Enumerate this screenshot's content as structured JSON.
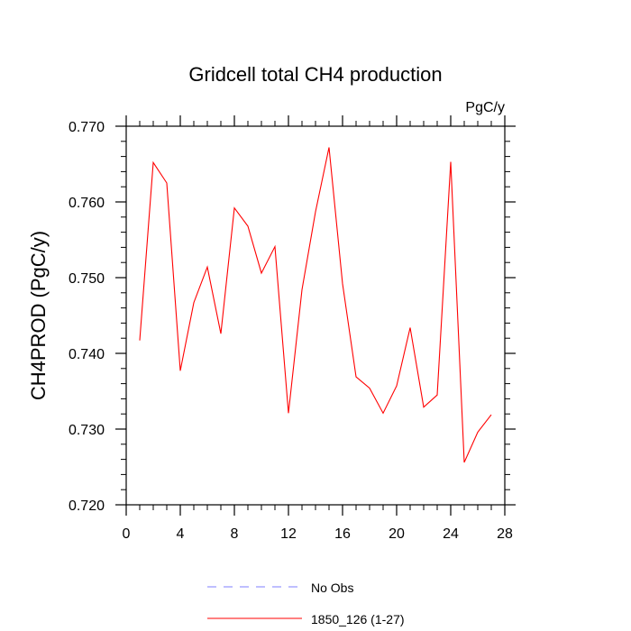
{
  "chart_data": {
    "type": "line",
    "title": "Gridcell total CH4 production",
    "units_label": "PgC/y",
    "xlabel": "",
    "ylabel": "CH4PROD  (PgC/y)",
    "xlim": [
      0,
      28
    ],
    "ylim": [
      0.72,
      0.77
    ],
    "x_major_ticks": [
      0,
      4,
      8,
      12,
      16,
      20,
      24,
      28
    ],
    "y_major_ticks": [
      0.72,
      0.73,
      0.74,
      0.75,
      0.76,
      0.77
    ],
    "y_tick_labels": [
      "0.720",
      "0.730",
      "0.740",
      "0.750",
      "0.760",
      "0.770"
    ],
    "series": [
      {
        "name": "1850_126 (1-27)",
        "color": "#ff0000",
        "style": "solid",
        "x": [
          1,
          2,
          3,
          4,
          5,
          6,
          7,
          8,
          9,
          10,
          11,
          12,
          13,
          14,
          15,
          16,
          17,
          18,
          19,
          20,
          21,
          22,
          23,
          24,
          25,
          26,
          27
        ],
        "values": [
          0.7417,
          0.7652,
          0.7625,
          0.7377,
          0.7467,
          0.7514,
          0.7426,
          0.7592,
          0.7568,
          0.7506,
          0.7541,
          0.7321,
          0.7484,
          0.7587,
          0.7672,
          0.7492,
          0.7369,
          0.7354,
          0.7321,
          0.7357,
          0.7434,
          0.7329,
          0.7345,
          0.7653,
          0.7256,
          0.7296,
          0.7319
        ]
      }
    ],
    "legend": [
      {
        "label": "No Obs",
        "color": "#7f7fff",
        "style": "dashed"
      },
      {
        "label": "1850_126 (1-27)",
        "color": "#ff0000",
        "style": "solid"
      }
    ],
    "legend_position": "bottom-center"
  }
}
